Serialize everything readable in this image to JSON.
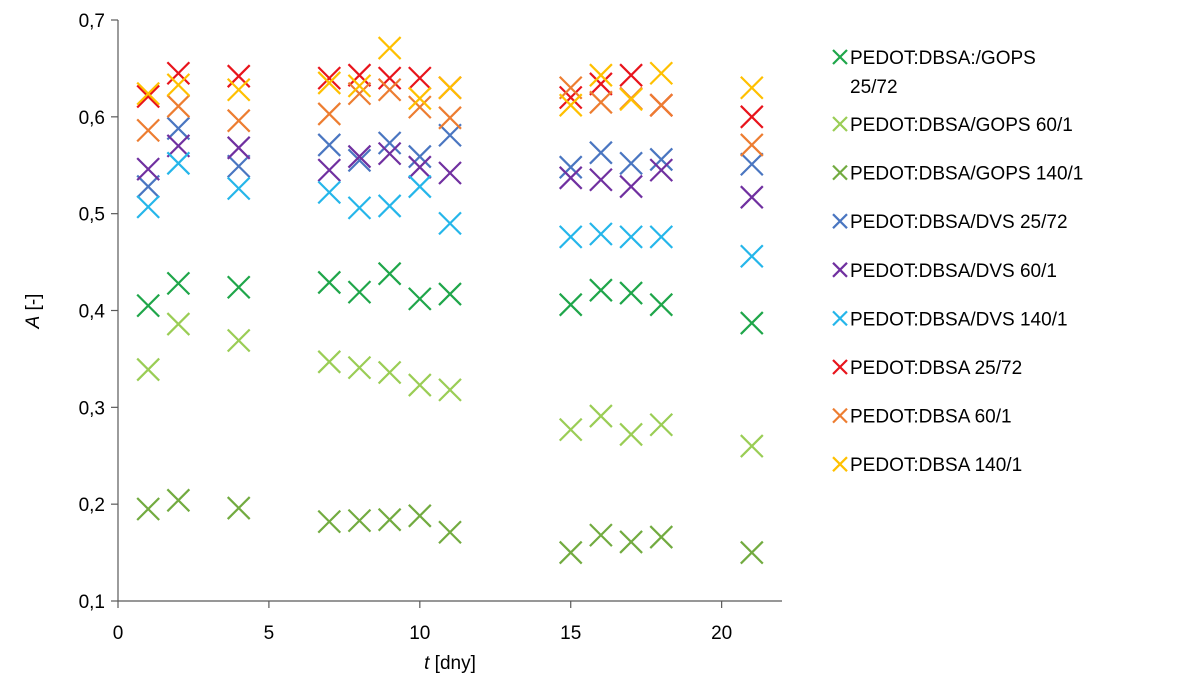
{
  "chart_data": {
    "type": "scatter",
    "title": "",
    "xlabel": {
      "symbol": "t",
      "unit": " [dny]"
    },
    "ylabel": {
      "symbol": "A",
      "unit": " [-]"
    },
    "xlim": [
      0,
      22
    ],
    "ylim": [
      0.1,
      0.7
    ],
    "xticks": [
      0,
      5,
      10,
      15,
      20
    ],
    "yticks": [
      0.1,
      0.2,
      0.3,
      0.4,
      0.5,
      0.6,
      0.7
    ],
    "xtick_labels": [
      "0",
      "5",
      "10",
      "15",
      "20"
    ],
    "ytick_labels": [
      "0,1",
      "0,2",
      "0,3",
      "0,4",
      "0,5",
      "0,6",
      "0,7"
    ],
    "grid": false,
    "marker": "x",
    "legend_position": "right",
    "x": [
      1,
      2,
      4,
      7,
      8,
      9,
      10,
      11,
      15,
      16,
      17,
      18,
      21
    ],
    "series": [
      {
        "name_lines": [
          "PEDOT:DBSA:/GOPS",
          "25/72"
        ],
        "color": "#1fa64a",
        "values": [
          0.405,
          0.428,
          0.424,
          0.429,
          0.419,
          0.438,
          0.412,
          0.417,
          0.406,
          0.421,
          0.418,
          0.406,
          0.387
        ]
      },
      {
        "name_lines": [
          "PEDOT:DBSA/GOPS 60/1"
        ],
        "color": "#9acd55",
        "values": [
          0.339,
          0.386,
          0.369,
          0.347,
          0.341,
          0.336,
          0.323,
          0.318,
          0.277,
          0.291,
          0.272,
          0.282,
          0.26
        ]
      },
      {
        "name_lines": [
          "PEDOT:DBSA/GOPS 140/1"
        ],
        "color": "#72ab40",
        "values": [
          0.195,
          0.204,
          0.196,
          0.182,
          0.183,
          0.184,
          0.188,
          0.171,
          0.15,
          0.168,
          0.161,
          0.166,
          0.15
        ]
      },
      {
        "name_lines": [
          "PEDOT:DBSA/DVS 25/72"
        ],
        "color": "#4a76c1",
        "values": [
          0.528,
          0.588,
          0.549,
          0.571,
          0.555,
          0.573,
          0.559,
          0.581,
          0.548,
          0.563,
          0.552,
          0.556,
          0.551
        ]
      },
      {
        "name_lines": [
          "PEDOT:DBSA/DVS 60/1"
        ],
        "color": "#7030a0",
        "values": [
          0.546,
          0.57,
          0.568,
          0.545,
          0.559,
          0.562,
          0.548,
          0.542,
          0.537,
          0.535,
          0.528,
          0.545,
          0.517
        ]
      },
      {
        "name_lines": [
          "PEDOT:DBSA/DVS 140/1"
        ],
        "color": "#25b6ea",
        "values": [
          0.507,
          0.552,
          0.526,
          0.522,
          0.506,
          0.508,
          0.528,
          0.49,
          0.476,
          0.479,
          0.476,
          0.476,
          0.456
        ]
      },
      {
        "name_lines": [
          "PEDOT:DBSA 25/72"
        ],
        "color": "#e8141c",
        "values": [
          0.621,
          0.645,
          0.642,
          0.64,
          0.643,
          0.64,
          0.64,
          0.63,
          0.62,
          0.634,
          0.643,
          0.612,
          0.6
        ]
      },
      {
        "name_lines": [
          "PEDOT:DBSA 60/1"
        ],
        "color": "#ed7d31",
        "values": [
          0.586,
          0.611,
          0.596,
          0.603,
          0.624,
          0.628,
          0.61,
          0.599,
          0.63,
          0.615,
          0.619,
          0.612,
          0.571
        ]
      },
      {
        "name_lines": [
          "PEDOT:DBSA 140/1"
        ],
        "color": "#ffc000",
        "values": [
          0.624,
          0.633,
          0.628,
          0.635,
          0.632,
          0.671,
          0.619,
          0.63,
          0.612,
          0.643,
          0.618,
          0.645,
          0.63
        ]
      }
    ]
  }
}
